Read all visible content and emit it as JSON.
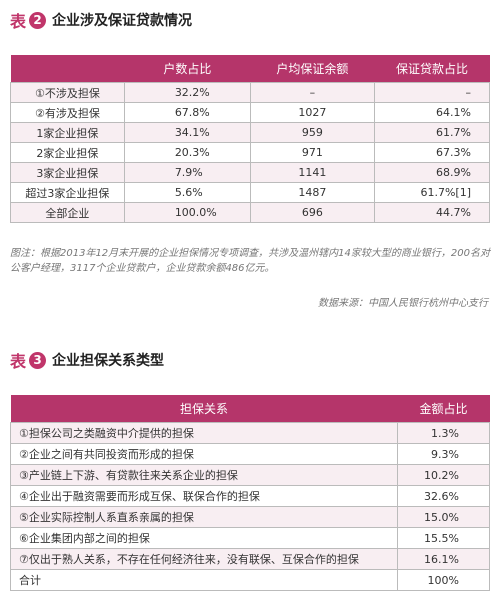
{
  "table2": {
    "label": "表",
    "number": "2",
    "title": "企业涉及保证贷款情况",
    "header": [
      "户数占比",
      "户均保证余额",
      "保证贷款占比"
    ],
    "rows": [
      [
        "①不涉及担保",
        "32.2%",
        "–",
        "–"
      ],
      [
        "②有涉及担保",
        "67.8%",
        "1027",
        "64.1%"
      ],
      [
        "1家企业担保",
        "34.1%",
        "959",
        "61.7%"
      ],
      [
        "2家企业担保",
        "20.3%",
        "971",
        "67.3%"
      ],
      [
        "3家企业担保",
        "7.9%",
        "1141",
        "68.9%"
      ],
      [
        "超过3家企业担保",
        "5.6%",
        "1487",
        "61.7%[1]"
      ],
      [
        "全部企业",
        "100.0%",
        "696",
        "44.7%"
      ]
    ]
  },
  "note": "图注：根据2013年12月末开展的企业担保情况专项调查，共涉及温州辖内14家较大型的商业银行，200名对公客户经理，3117个企业贷款户，企业贷款余额486亿元。",
  "source": "数据来源：中国人民银行杭州中心支行",
  "table3": {
    "label": "表",
    "number": "3",
    "title": "企业担保关系类型",
    "header": [
      "担保关系",
      "金额占比"
    ],
    "rows": [
      [
        "①担保公司之类融资中介提供的担保",
        "1.3%"
      ],
      [
        "②企业之间有共同投资而形成的担保",
        "9.3%"
      ],
      [
        "③产业链上下游、有贷款往来关系企业的担保",
        "10.2%"
      ],
      [
        "④企业出于融资需要而形成互保、联保合作的担保",
        "32.6%"
      ],
      [
        "⑤企业实际控制人系直系亲属的担保",
        "15.0%"
      ],
      [
        "⑥企业集团内部之间的担保",
        "15.5%"
      ],
      [
        "⑦仅出于熟人关系，不存在任何经济往来，没有联保、互保合作的担保",
        "16.1%"
      ],
      [
        "合计",
        "100%"
      ]
    ]
  }
}
